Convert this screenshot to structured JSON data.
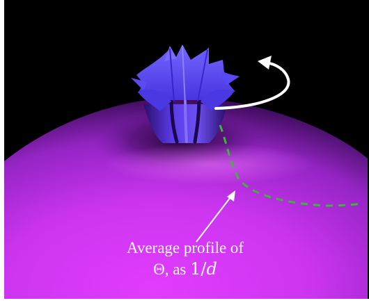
{
  "annotation": {
    "line1": "Average profile of",
    "line2_prefix": "Θ, as ",
    "line2_math_num": "1/",
    "line2_math_var": "d"
  },
  "colors": {
    "background": "#000000",
    "surface_bright": "#e040ff",
    "surface_mid": "#b52ee0",
    "surface_dark": "#2a0840",
    "core_blue": "#5a4bff",
    "core_deep": "#3a26c8",
    "arrow": "#ffffff",
    "profile_dash": "#3fb43a"
  },
  "icons": {
    "rotation_arrow": "curved-rotation-arrow",
    "pointer_arrow": "straight-pointer-arrow"
  }
}
